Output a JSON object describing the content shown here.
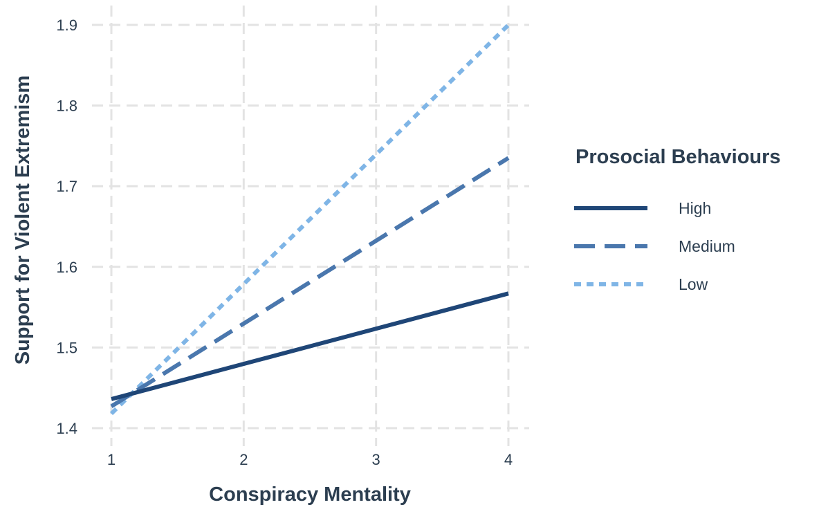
{
  "chart_data": {
    "type": "line",
    "xlabel": "Conspiracy Mentality",
    "ylabel": "Support for Violent Extremism",
    "xlim": [
      1,
      4
    ],
    "ylim": [
      1.4,
      1.9
    ],
    "x_ticks": [
      "1",
      "2",
      "3",
      "4"
    ],
    "y_ticks": [
      "1.4",
      "1.5",
      "1.6",
      "1.7",
      "1.8",
      "1.9"
    ],
    "grid": true,
    "legend": {
      "title": "Prosocial Behaviours",
      "position": "right"
    },
    "x": [
      1,
      4
    ],
    "series": [
      {
        "name": "High",
        "values": [
          1.436,
          1.567
        ],
        "color": "#1f4677",
        "dash": "solid"
      },
      {
        "name": "Medium",
        "values": [
          1.427,
          1.735
        ],
        "color": "#4a77ad",
        "dash": "dashed"
      },
      {
        "name": "Low",
        "values": [
          1.418,
          1.9
        ],
        "color": "#7fb5e6",
        "dash": "dotted"
      }
    ]
  }
}
